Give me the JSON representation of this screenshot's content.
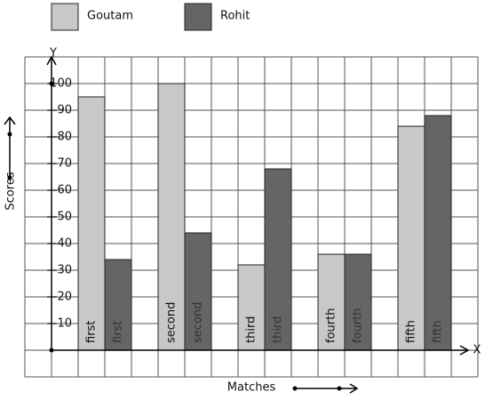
{
  "chart_data": {
    "type": "bar",
    "x_label": "Matches",
    "y_label": "Scores",
    "x_axis_name": "X",
    "y_axis_name": "Y",
    "categories": [
      "first",
      "second",
      "third",
      "fourth",
      "fifth"
    ],
    "series": [
      {
        "name": "Goutam",
        "color": "#c8c8c8",
        "values": [
          95,
          100,
          32,
          36,
          84
        ]
      },
      {
        "name": "Rohit",
        "color": "#656565",
        "values": [
          34,
          44,
          68,
          36,
          88
        ]
      }
    ],
    "ylim": [
      0,
      110
    ],
    "yticks": [
      10,
      20,
      30,
      40,
      50,
      60,
      70,
      80,
      90,
      100
    ],
    "grid": true
  }
}
